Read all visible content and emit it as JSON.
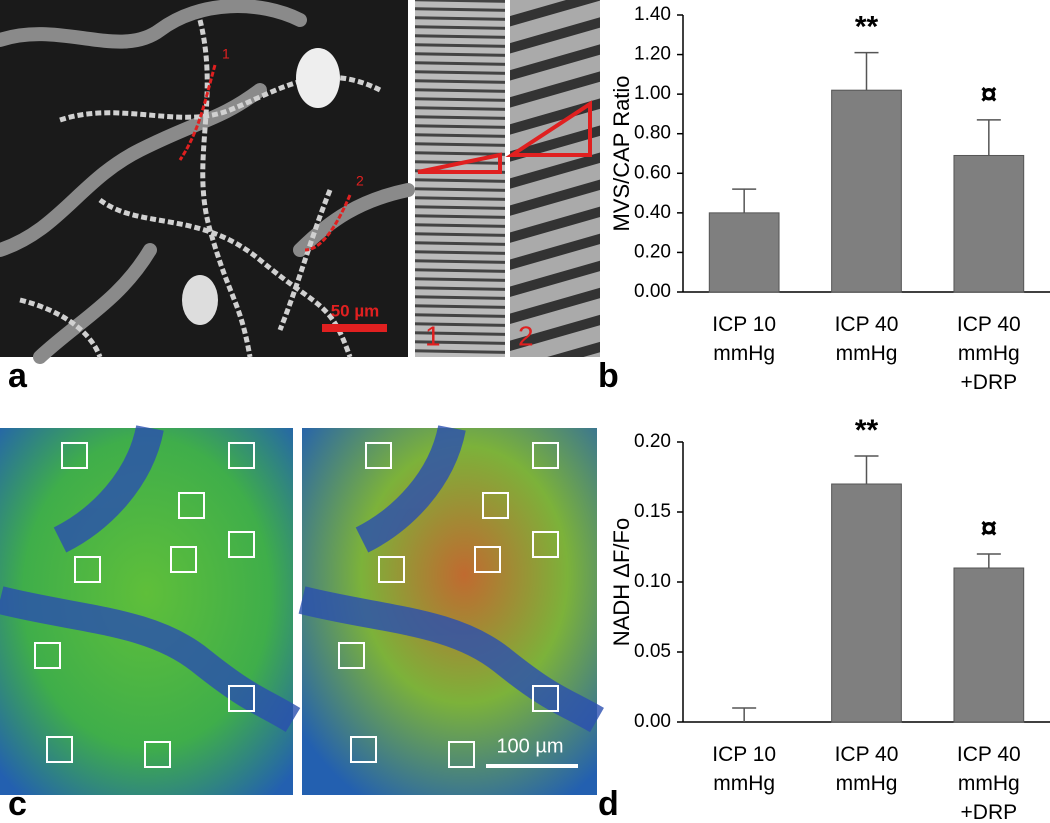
{
  "panel_labels": [
    "a",
    "b",
    "c",
    "d"
  ],
  "image_labels": {
    "trace_1": "1",
    "trace_2": "2",
    "scale_a": "50 µm",
    "strip_1": "1",
    "strip_2": "2",
    "scale_c": "100  µm"
  },
  "chart_data": [
    {
      "type": "bar",
      "ylabel": "MVS/CAP Ratio",
      "categories": [
        "ICP 10\nmmHg",
        "ICP 40\nmmHg",
        "ICP 40\nmmHg\n+DRP"
      ],
      "values": [
        0.4,
        1.02,
        0.69
      ],
      "errors": [
        0.12,
        0.19,
        0.18
      ],
      "annotations": [
        null,
        "**",
        "¤"
      ],
      "color": "#7f7f7f",
      "ylim": [
        0,
        1.4
      ],
      "yticks": [
        {
          "value": 0,
          "label": "0.00"
        },
        {
          "value": 0.2,
          "label": "0.20"
        },
        {
          "value": 0.4,
          "label": "0.40"
        },
        {
          "value": 0.6,
          "label": "0.60"
        },
        {
          "value": 0.8,
          "label": "0.80"
        },
        {
          "value": 1.0,
          "label": "1.00"
        },
        {
          "value": 1.2,
          "label": "1.20"
        },
        {
          "value": 1.4,
          "label": "1.40"
        }
      ]
    },
    {
      "type": "bar",
      "ylabel": "NADH ΔF/Fo",
      "categories": [
        "ICP 10\nmmHg",
        "ICP 40\nmmHg",
        "ICP 40\nmmHg\n+DRP"
      ],
      "values": [
        0.0,
        0.17,
        0.11
      ],
      "errors": [
        0.01,
        0.02,
        0.01
      ],
      "annotations": [
        null,
        "**",
        "¤"
      ],
      "color": "#7f7f7f",
      "ylim": [
        0,
        0.2
      ],
      "yticks": [
        {
          "value": 0,
          "label": "0.00"
        },
        {
          "value": 0.05,
          "label": "0.05"
        },
        {
          "value": 0.1,
          "label": "0.10"
        },
        {
          "value": 0.15,
          "label": "0.15"
        },
        {
          "value": 0.2,
          "label": "0.20"
        }
      ]
    }
  ]
}
